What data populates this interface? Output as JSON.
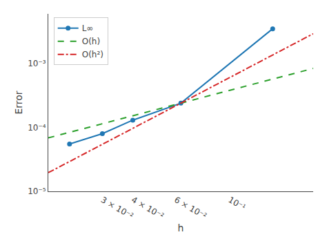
{
  "chart_data": {
    "type": "line",
    "xlabel": "h",
    "ylabel": "Error",
    "log": true,
    "grid": false,
    "legend": "upper left",
    "xlim": [
      0.018,
      0.22
    ],
    "ylim": [
      1e-05,
      0.006
    ],
    "xticks": [
      {
        "value": 0.03,
        "label": "3 × 10⁻²"
      },
      {
        "value": 0.04,
        "label": "4 × 10⁻²"
      },
      {
        "value": 0.06,
        "label": "6 × 10⁻²"
      },
      {
        "value": 0.1,
        "label": "10⁻¹"
      }
    ],
    "yticks": [
      {
        "value": 1e-05,
        "label": "10⁻⁵"
      },
      {
        "value": 0.0001,
        "label": "10⁻⁴"
      },
      {
        "value": 0.001,
        "label": "10⁻³"
      }
    ],
    "series": [
      {
        "name": "L∞",
        "color": "#1f77b4",
        "marker": "circle",
        "line_style": "solid",
        "x": [
          0.022,
          0.03,
          0.04,
          0.063,
          0.15
        ],
        "values": [
          5.5e-05,
          8e-05,
          0.00013,
          0.00024,
          0.0035
        ]
      },
      {
        "name": "O(h)",
        "color": "#2ca02c",
        "marker": "none",
        "line_style": "dashed",
        "x": [
          0.018,
          0.22
        ],
        "values": [
          6.857142857142857e-05,
          0.0008380952380952382
        ]
      },
      {
        "name": "O(h²)",
        "color": "#d62728",
        "marker": "none",
        "line_style": "dashdot",
        "x": [
          0.018,
          0.22
        ],
        "values": [
          1.9591836734693877e-05,
          0.002926681783824641
        ]
      }
    ]
  }
}
